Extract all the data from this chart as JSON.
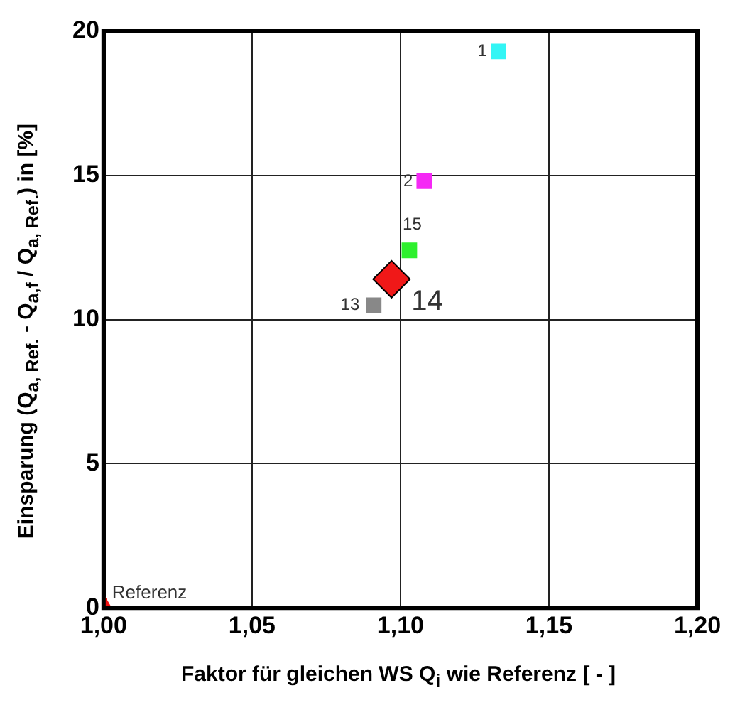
{
  "chart_data": {
    "type": "scatter",
    "xlabel": "Faktor für gleichen WS Q$_{i}$ wie Referenz  [ - ]",
    "ylabel": "Einsparung (Q$_{a, Ref.}$ - Q$_{a,f}$ / Q$_{a, Ref.}$) in [%]",
    "series": [
      {
        "name": "1",
        "color": "#33f5f5",
        "marker": "square",
        "x": [
          1.133
        ],
        "values": [
          19.3
        ]
      },
      {
        "name": "2",
        "color": "#f528f5",
        "marker": "square",
        "x": [
          1.108
        ],
        "values": [
          14.8
        ]
      },
      {
        "name": "15",
        "color": "#2ef02e",
        "marker": "square",
        "x": [
          1.103
        ],
        "values": [
          12.4
        ]
      },
      {
        "name": "14",
        "color": "#f01818",
        "marker": "diamond",
        "x": [
          1.097
        ],
        "values": [
          11.4
        ]
      },
      {
        "name": "13",
        "color": "#888888",
        "marker": "square",
        "x": [
          1.091
        ],
        "values": [
          10.5
        ]
      },
      {
        "name": "Referenz",
        "color": "#f01010",
        "marker": "triangle",
        "x": [
          1.0
        ],
        "values": [
          0
        ]
      }
    ],
    "xlim": [
      1.0,
      1.2
    ],
    "xticks": [
      {
        "value": 1.0,
        "label": "1,00"
      },
      {
        "value": 1.05,
        "label": "1,05"
      },
      {
        "value": 1.1,
        "label": "1,10"
      },
      {
        "value": 1.15,
        "label": "1,15"
      },
      {
        "value": 1.2,
        "label": "1,20"
      }
    ],
    "ylim": [
      0,
      20
    ],
    "yticks": [
      0,
      5,
      10,
      15,
      20
    ],
    "grid": true,
    "legend": false
  }
}
